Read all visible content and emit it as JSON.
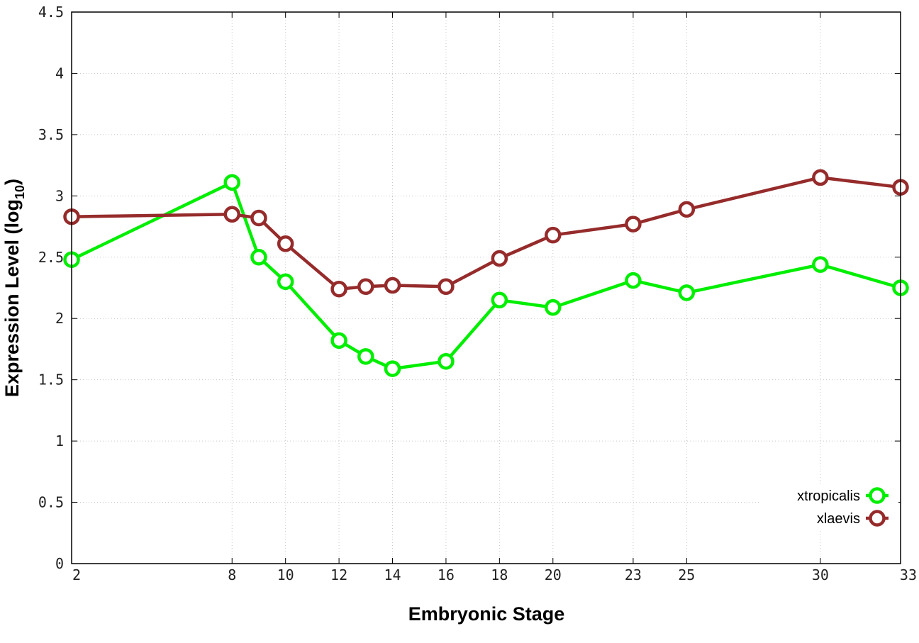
{
  "chart_data": {
    "type": "line",
    "xlabel": "Embryonic Stage",
    "ylabel_main": "Expression Level (log",
    "ylabel_sub": "10",
    "ylabel_close": ")",
    "x_tick_labels": [
      "2",
      "8",
      "10",
      "12",
      "14",
      "16",
      "18",
      "20",
      "23",
      "25",
      "30",
      "33"
    ],
    "y_ticks": [
      0,
      0.5,
      1,
      1.5,
      2,
      2.5,
      3,
      3.5,
      4,
      4.5
    ],
    "y_tick_labels": [
      "0",
      "0.5",
      "1",
      "1.5",
      "2",
      "2.5",
      "3",
      "3.5",
      "4",
      "4.5"
    ],
    "xlim": [
      2,
      33
    ],
    "ylim": [
      0,
      4.5
    ],
    "grid": true,
    "legend_position": "bottom-right",
    "series": [
      {
        "name": "xtropicalis",
        "color": "#00ee00",
        "x": [
          2,
          8,
          9,
          10,
          12,
          13,
          14,
          16,
          18,
          20,
          23,
          25,
          30,
          33
        ],
        "values": [
          2.48,
          3.11,
          2.5,
          2.3,
          1.82,
          1.69,
          1.59,
          1.65,
          2.15,
          2.09,
          2.31,
          2.21,
          2.44,
          2.25
        ]
      },
      {
        "name": "xlaevis",
        "color": "#962b2b",
        "x": [
          2,
          8,
          9,
          10,
          12,
          13,
          14,
          16,
          18,
          20,
          23,
          25,
          30,
          33
        ],
        "values": [
          2.83,
          2.85,
          2.82,
          2.61,
          2.24,
          2.26,
          2.27,
          2.26,
          2.49,
          2.68,
          2.77,
          2.89,
          3.15,
          3.07
        ]
      }
    ]
  }
}
